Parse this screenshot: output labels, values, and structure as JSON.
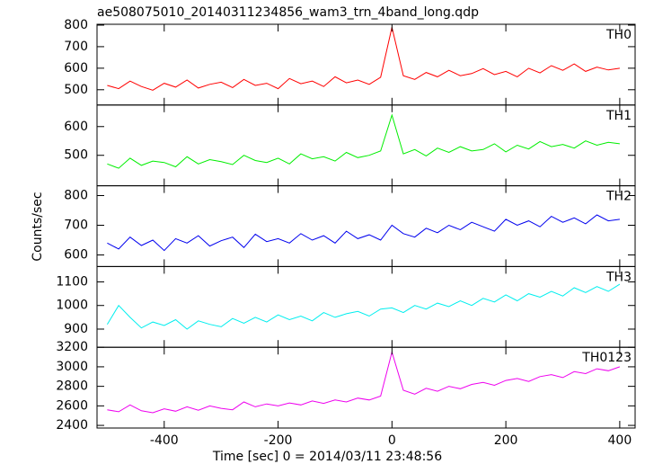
{
  "chart_data": [
    {
      "type": "line",
      "title": "ae508075010_20140311234856_wam3_trn_4band_long.qdp",
      "ylabel": "Counts/sec",
      "x": [
        -500,
        -480,
        -460,
        -440,
        -420,
        -400,
        -380,
        -360,
        -340,
        -320,
        -300,
        -280,
        -260,
        -240,
        -220,
        -200,
        -180,
        -160,
        -140,
        -120,
        -100,
        -80,
        -60,
        -40,
        -20,
        0,
        20,
        40,
        60,
        80,
        100,
        120,
        140,
        160,
        180,
        200,
        220,
        240,
        260,
        280,
        300,
        320,
        340,
        360,
        380,
        400
      ],
      "series": [
        {
          "name": "TH0",
          "color": "#ff0000",
          "values": [
            520,
            505,
            540,
            515,
            498,
            530,
            512,
            545,
            508,
            525,
            535,
            510,
            548,
            520,
            530,
            505,
            552,
            528,
            540,
            515,
            560,
            532,
            545,
            525,
            558,
            790,
            565,
            548,
            580,
            560,
            590,
            565,
            575,
            598,
            570,
            585,
            560,
            600,
            578,
            612,
            590,
            620,
            585,
            605,
            592,
            600
          ]
        }
      ],
      "xlim": [
        -518,
        427
      ],
      "xticks": [
        -400,
        -200,
        0,
        200,
        400
      ],
      "ylim": [
        429,
        804
      ],
      "yticks": [
        500,
        600,
        700,
        800
      ]
    },
    {
      "type": "line",
      "x": [
        -500,
        -480,
        -460,
        -440,
        -420,
        -400,
        -380,
        -360,
        -340,
        -320,
        -300,
        -280,
        -260,
        -240,
        -220,
        -200,
        -180,
        -160,
        -140,
        -120,
        -100,
        -80,
        -60,
        -40,
        -20,
        0,
        20,
        40,
        60,
        80,
        100,
        120,
        140,
        160,
        180,
        200,
        220,
        240,
        260,
        280,
        300,
        320,
        340,
        360,
        380,
        400
      ],
      "series": [
        {
          "name": "TH1",
          "color": "#00ee00",
          "values": [
            470,
            455,
            490,
            465,
            480,
            475,
            460,
            495,
            470,
            485,
            478,
            468,
            500,
            482,
            475,
            490,
            470,
            505,
            488,
            495,
            480,
            510,
            492,
            500,
            515,
            640,
            505,
            520,
            498,
            525,
            510,
            530,
            515,
            520,
            540,
            512,
            535,
            522,
            548,
            530,
            538,
            525,
            550,
            535,
            545,
            540
          ]
        }
      ],
      "xlim": [
        -518,
        427
      ],
      "xticks": [
        -400,
        -200,
        0,
        200,
        400
      ],
      "ylim": [
        394,
        675
      ],
      "yticks": [
        500,
        600
      ]
    },
    {
      "type": "line",
      "x": [
        -500,
        -480,
        -460,
        -440,
        -420,
        -400,
        -380,
        -360,
        -340,
        -320,
        -300,
        -280,
        -260,
        -240,
        -220,
        -200,
        -180,
        -160,
        -140,
        -120,
        -100,
        -80,
        -60,
        -40,
        -20,
        0,
        20,
        40,
        60,
        80,
        100,
        120,
        140,
        160,
        180,
        200,
        220,
        240,
        260,
        280,
        300,
        320,
        340,
        360,
        380,
        400
      ],
      "series": [
        {
          "name": "TH2",
          "color": "#0000ee",
          "values": [
            640,
            620,
            660,
            632,
            650,
            615,
            655,
            640,
            665,
            630,
            648,
            660,
            625,
            670,
            645,
            655,
            640,
            672,
            650,
            665,
            640,
            680,
            655,
            668,
            650,
            700,
            672,
            660,
            690,
            675,
            700,
            685,
            710,
            695,
            680,
            720,
            700,
            715,
            695,
            730,
            710,
            725,
            705,
            735,
            715,
            720
          ]
        }
      ],
      "xlim": [
        -518,
        427
      ],
      "xticks": [
        -400,
        -200,
        0,
        200,
        400
      ],
      "ylim": [
        561,
        833
      ],
      "yticks": [
        600,
        700,
        800
      ]
    },
    {
      "type": "line",
      "x": [
        -500,
        -480,
        -460,
        -440,
        -420,
        -400,
        -380,
        -360,
        -340,
        -320,
        -300,
        -280,
        -260,
        -240,
        -220,
        -200,
        -180,
        -160,
        -140,
        -120,
        -100,
        -80,
        -60,
        -40,
        -20,
        0,
        20,
        40,
        60,
        80,
        100,
        120,
        140,
        160,
        180,
        200,
        220,
        240,
        260,
        280,
        300,
        320,
        340,
        360,
        380,
        400
      ],
      "series": [
        {
          "name": "TH3",
          "color": "#00eeee",
          "values": [
            920,
            1000,
            950,
            905,
            930,
            915,
            940,
            900,
            935,
            920,
            910,
            945,
            925,
            950,
            930,
            960,
            940,
            955,
            935,
            970,
            950,
            965,
            975,
            955,
            985,
            990,
            970,
            1000,
            985,
            1010,
            995,
            1020,
            1000,
            1030,
            1015,
            1045,
            1020,
            1050,
            1035,
            1060,
            1040,
            1075,
            1055,
            1080,
            1060,
            1090
          ]
        }
      ],
      "xlim": [
        -518,
        427
      ],
      "xticks": [
        -400,
        -200,
        0,
        200,
        400
      ],
      "ylim": [
        823,
        1165
      ],
      "yticks": [
        900,
        1000,
        1100
      ]
    },
    {
      "type": "line",
      "xlabel": "Time [sec] 0 = 2014/03/11 23:48:56",
      "x": [
        -500,
        -480,
        -460,
        -440,
        -420,
        -400,
        -380,
        -360,
        -340,
        -320,
        -300,
        -280,
        -260,
        -240,
        -220,
        -200,
        -180,
        -160,
        -140,
        -120,
        -100,
        -80,
        -60,
        -40,
        -20,
        0,
        20,
        40,
        60,
        80,
        100,
        120,
        140,
        160,
        180,
        200,
        220,
        240,
        260,
        280,
        300,
        320,
        340,
        360,
        380,
        400
      ],
      "series": [
        {
          "name": "TH0123",
          "color": "#ee00ee",
          "values": [
            2560,
            2540,
            2610,
            2550,
            2530,
            2570,
            2545,
            2590,
            2555,
            2600,
            2575,
            2560,
            2640,
            2590,
            2620,
            2600,
            2630,
            2610,
            2650,
            2625,
            2660,
            2640,
            2680,
            2660,
            2700,
            3150,
            2760,
            2720,
            2780,
            2750,
            2800,
            2775,
            2820,
            2840,
            2810,
            2860,
            2880,
            2850,
            2900,
            2920,
            2890,
            2950,
            2930,
            2980,
            2960,
            3000
          ]
        }
      ],
      "xlim": [
        -518,
        427
      ],
      "xticks": [
        -400,
        -200,
        0,
        200,
        400
      ],
      "ylim": [
        2373,
        3200
      ],
      "yticks": [
        2400,
        2600,
        2800,
        3000,
        3200
      ]
    }
  ]
}
